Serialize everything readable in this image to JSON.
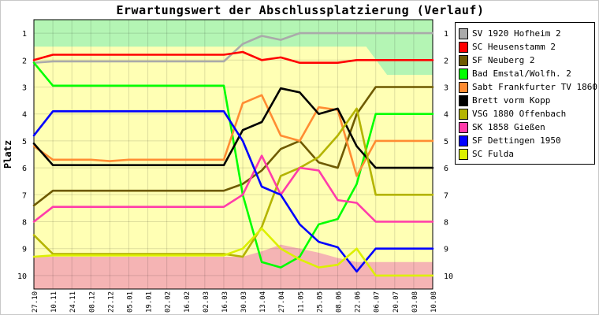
{
  "chart_data": {
    "type": "line",
    "title": "Erwartungswert der Abschlussplatzierung (Verlauf)",
    "ylabel": "Platz",
    "xlabel": "",
    "y_axis_reversed": true,
    "ylim": [
      0.5,
      10.5
    ],
    "yticks": [
      "1",
      "2",
      "3",
      "4",
      "5",
      "6",
      "7",
      "8",
      "9",
      "10"
    ],
    "grid": "horizontal",
    "legend_position": "right",
    "x": [
      "27.10",
      "10.11",
      "24.11",
      "08.12",
      "22.12",
      "05.01",
      "19.01",
      "02.02",
      "16.02",
      "02.03",
      "16.03",
      "30.03",
      "13.04",
      "27.04",
      "11.05",
      "25.05",
      "08.06",
      "22.06",
      "06.07",
      "20.07",
      "03.08",
      "10.08"
    ],
    "background_zones": [
      {
        "name": "promotion",
        "color": "#b4f5b4"
      },
      {
        "name": "middle",
        "color": "#ffffb4"
      },
      {
        "name": "relegation",
        "color": "#f5b4b4"
      }
    ],
    "series": [
      {
        "name": "SV 1920 Hofheim 2",
        "color": "#aaaaaa",
        "values": [
          2.1,
          2.05,
          2.05,
          2.05,
          2.05,
          2.05,
          2.05,
          2.05,
          2.05,
          2.05,
          2.05,
          1.4,
          1.1,
          1.25,
          1.0,
          1.0,
          1.0,
          1.0,
          1.0,
          1.0,
          1.0,
          1.0
        ]
      },
      {
        "name": "SC Heusenstamm 2",
        "color": "#ff0000",
        "values": [
          2.0,
          1.8,
          1.8,
          1.8,
          1.8,
          1.8,
          1.8,
          1.8,
          1.8,
          1.8,
          1.8,
          1.7,
          2.0,
          1.9,
          2.1,
          2.1,
          2.1,
          2.0,
          2.0,
          2.0,
          2.0,
          2.0
        ]
      },
      {
        "name": "SF Neuberg 2",
        "color": "#6e5a00",
        "values": [
          7.4,
          6.85,
          6.85,
          6.85,
          6.85,
          6.85,
          6.85,
          6.85,
          6.85,
          6.85,
          6.85,
          6.6,
          6.1,
          5.3,
          5.0,
          5.8,
          6.0,
          4.0,
          3.0,
          3.0,
          3.0,
          3.0
        ]
      },
      {
        "name": "Bad Emstal/Wolfh. 2",
        "color": "#00ff00",
        "values": [
          2.1,
          2.95,
          2.95,
          2.95,
          2.95,
          2.95,
          2.95,
          2.95,
          2.95,
          2.95,
          2.95,
          7.0,
          9.5,
          9.7,
          9.3,
          8.1,
          7.9,
          6.6,
          4.0,
          4.0,
          4.0,
          4.0
        ]
      },
      {
        "name": "Sabt Frankfurter TV 1860 1",
        "color": "#ff8c32",
        "values": [
          5.2,
          5.7,
          5.7,
          5.7,
          5.75,
          5.7,
          5.7,
          5.7,
          5.7,
          5.7,
          5.7,
          3.6,
          3.3,
          4.8,
          5.0,
          3.75,
          3.85,
          6.3,
          5.0,
          5.0,
          5.0,
          5.0
        ]
      },
      {
        "name": "Brett vorm Kopp",
        "color": "#000000",
        "values": [
          5.1,
          5.9,
          5.9,
          5.9,
          5.9,
          5.9,
          5.9,
          5.9,
          5.9,
          5.9,
          5.9,
          4.6,
          4.3,
          3.05,
          3.2,
          4.0,
          3.8,
          5.2,
          6.0,
          6.0,
          6.0,
          6.0
        ]
      },
      {
        "name": "VSG 1880 Offenbach",
        "color": "#b4b400",
        "values": [
          8.5,
          9.2,
          9.2,
          9.2,
          9.2,
          9.2,
          9.2,
          9.2,
          9.2,
          9.2,
          9.2,
          9.3,
          8.2,
          6.3,
          6.0,
          5.6,
          4.8,
          3.8,
          7.0,
          7.0,
          7.0,
          7.0
        ]
      },
      {
        "name": "SK 1858 Gießen",
        "color": "#ff3caa",
        "values": [
          8.0,
          7.45,
          7.45,
          7.45,
          7.45,
          7.45,
          7.45,
          7.45,
          7.45,
          7.45,
          7.45,
          7.0,
          5.55,
          7.0,
          6.0,
          6.1,
          7.2,
          7.3,
          8.0,
          8.0,
          8.0,
          8.0
        ]
      },
      {
        "name": "SF Dettingen 1950",
        "color": "#0000ff",
        "values": [
          4.8,
          3.9,
          3.9,
          3.9,
          3.9,
          3.9,
          3.9,
          3.9,
          3.9,
          3.9,
          3.9,
          5.0,
          6.7,
          7.0,
          8.1,
          8.75,
          8.95,
          9.85,
          9.0,
          9.0,
          9.0,
          9.0
        ]
      },
      {
        "name": "SC Fulda",
        "color": "#dcf000",
        "values": [
          9.3,
          9.25,
          9.25,
          9.25,
          9.25,
          9.25,
          9.25,
          9.25,
          9.25,
          9.25,
          9.25,
          9.0,
          8.25,
          9.0,
          9.4,
          9.7,
          9.6,
          9.0,
          10.0,
          10.0,
          10.0,
          10.0
        ]
      }
    ]
  }
}
